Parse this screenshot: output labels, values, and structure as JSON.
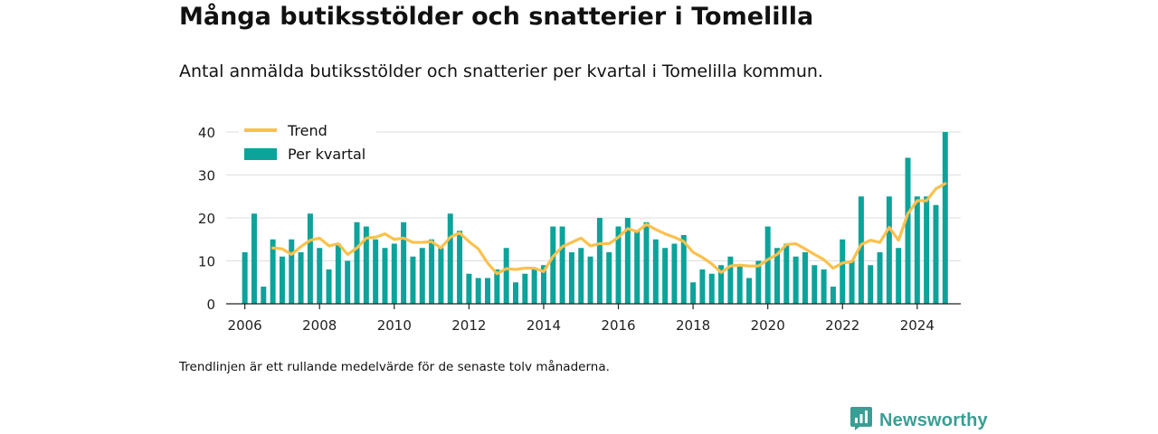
{
  "title": "Många butiksstölder och snatterier i Tomelilla",
  "subtitle": "Antal anmälda butiksstölder och snatterier per kvartal i Tomelilla kommun.",
  "footnote": "Trendlinjen är ett rullande medelvärde för de senaste tolv månaderna.",
  "brand": {
    "name": "Newsworthy",
    "icon": "bar-chart-logo-icon",
    "color": "#3a9e94"
  },
  "colors": {
    "bars": "#0ba39a",
    "trend": "#fbc14d",
    "grid": "#dddddd",
    "axis": "#222222"
  },
  "chart_data": {
    "type": "bar",
    "x_axis": "quarter",
    "xlim": [
      "2005-07",
      "2025-03"
    ],
    "ylim": [
      0,
      40
    ],
    "yticks": [
      0,
      10,
      20,
      30,
      40
    ],
    "xticks": [
      "2006",
      "2008",
      "2010",
      "2012",
      "2014",
      "2016",
      "2018",
      "2020",
      "2022",
      "2024"
    ],
    "grid": true,
    "legend_position": "top-left",
    "x": [
      "2006 Q1",
      "2006 Q2",
      "2006 Q3",
      "2006 Q4",
      "2007 Q1",
      "2007 Q2",
      "2007 Q3",
      "2007 Q4",
      "2008 Q1",
      "2008 Q2",
      "2008 Q3",
      "2008 Q4",
      "2009 Q1",
      "2009 Q2",
      "2009 Q3",
      "2009 Q4",
      "2010 Q1",
      "2010 Q2",
      "2010 Q3",
      "2010 Q4",
      "2011 Q1",
      "2011 Q2",
      "2011 Q3",
      "2011 Q4",
      "2012 Q1",
      "2012 Q2",
      "2012 Q3",
      "2012 Q4",
      "2013 Q1",
      "2013 Q2",
      "2013 Q3",
      "2013 Q4",
      "2014 Q1",
      "2014 Q2",
      "2014 Q3",
      "2014 Q4",
      "2015 Q1",
      "2015 Q2",
      "2015 Q3",
      "2015 Q4",
      "2016 Q1",
      "2016 Q2",
      "2016 Q3",
      "2016 Q4",
      "2017 Q1",
      "2017 Q2",
      "2017 Q3",
      "2017 Q4",
      "2018 Q1",
      "2018 Q2",
      "2018 Q3",
      "2018 Q4",
      "2019 Q1",
      "2019 Q2",
      "2019 Q3",
      "2019 Q4",
      "2020 Q1",
      "2020 Q2",
      "2020 Q3",
      "2020 Q4",
      "2021 Q1",
      "2021 Q2",
      "2021 Q3",
      "2021 Q4",
      "2022 Q1",
      "2022 Q2",
      "2022 Q3",
      "2022 Q4",
      "2023 Q1",
      "2023 Q2",
      "2023 Q3",
      "2023 Q4",
      "2024 Q1",
      "2024 Q2",
      "2024 Q3",
      "2024 Q4"
    ],
    "series": [
      {
        "name": "Per kvartal",
        "kind": "bar",
        "values": [
          12,
          21,
          4,
          15,
          11,
          15,
          12,
          21,
          13,
          8,
          14,
          10,
          19,
          18,
          15,
          13,
          14,
          19,
          11,
          13,
          15,
          13,
          21,
          17,
          7,
          6,
          6,
          8,
          13,
          5,
          7,
          8,
          9,
          18,
          18,
          12,
          13,
          11,
          20,
          12,
          18,
          20,
          17,
          19,
          15,
          13,
          14,
          16,
          5,
          8,
          7,
          9,
          11,
          9,
          6,
          10,
          18,
          13,
          14,
          11,
          12,
          9,
          8,
          4,
          15,
          10,
          25,
          9,
          12,
          25,
          13,
          34,
          25,
          25,
          23,
          40
        ]
      },
      {
        "name": "Trend",
        "kind": "line",
        "values": [
          null,
          null,
          null,
          13,
          12.8,
          11.5,
          13.3,
          14.8,
          15.3,
          13.5,
          14,
          11.5,
          13,
          15.3,
          15.5,
          16.3,
          15,
          15.3,
          14.3,
          14.3,
          14.5,
          13,
          15.5,
          16.5,
          14.5,
          12.8,
          9.5,
          7,
          8.2,
          8,
          8.3,
          8.3,
          7.5,
          11,
          13.3,
          14.3,
          15.3,
          13.5,
          14,
          14,
          15.5,
          17.5,
          16.8,
          18.5,
          17.3,
          16.3,
          15.5,
          14.5,
          12,
          10.8,
          9.3,
          7.3,
          8.8,
          9,
          8.8,
          8.8,
          10.3,
          11.5,
          13.8,
          14,
          12.8,
          11.5,
          10.3,
          8.3,
          9.5,
          9.8,
          13.8,
          14.8,
          14.3,
          17.8,
          14.8,
          21,
          24,
          24,
          26.8,
          28
        ]
      }
    ]
  }
}
